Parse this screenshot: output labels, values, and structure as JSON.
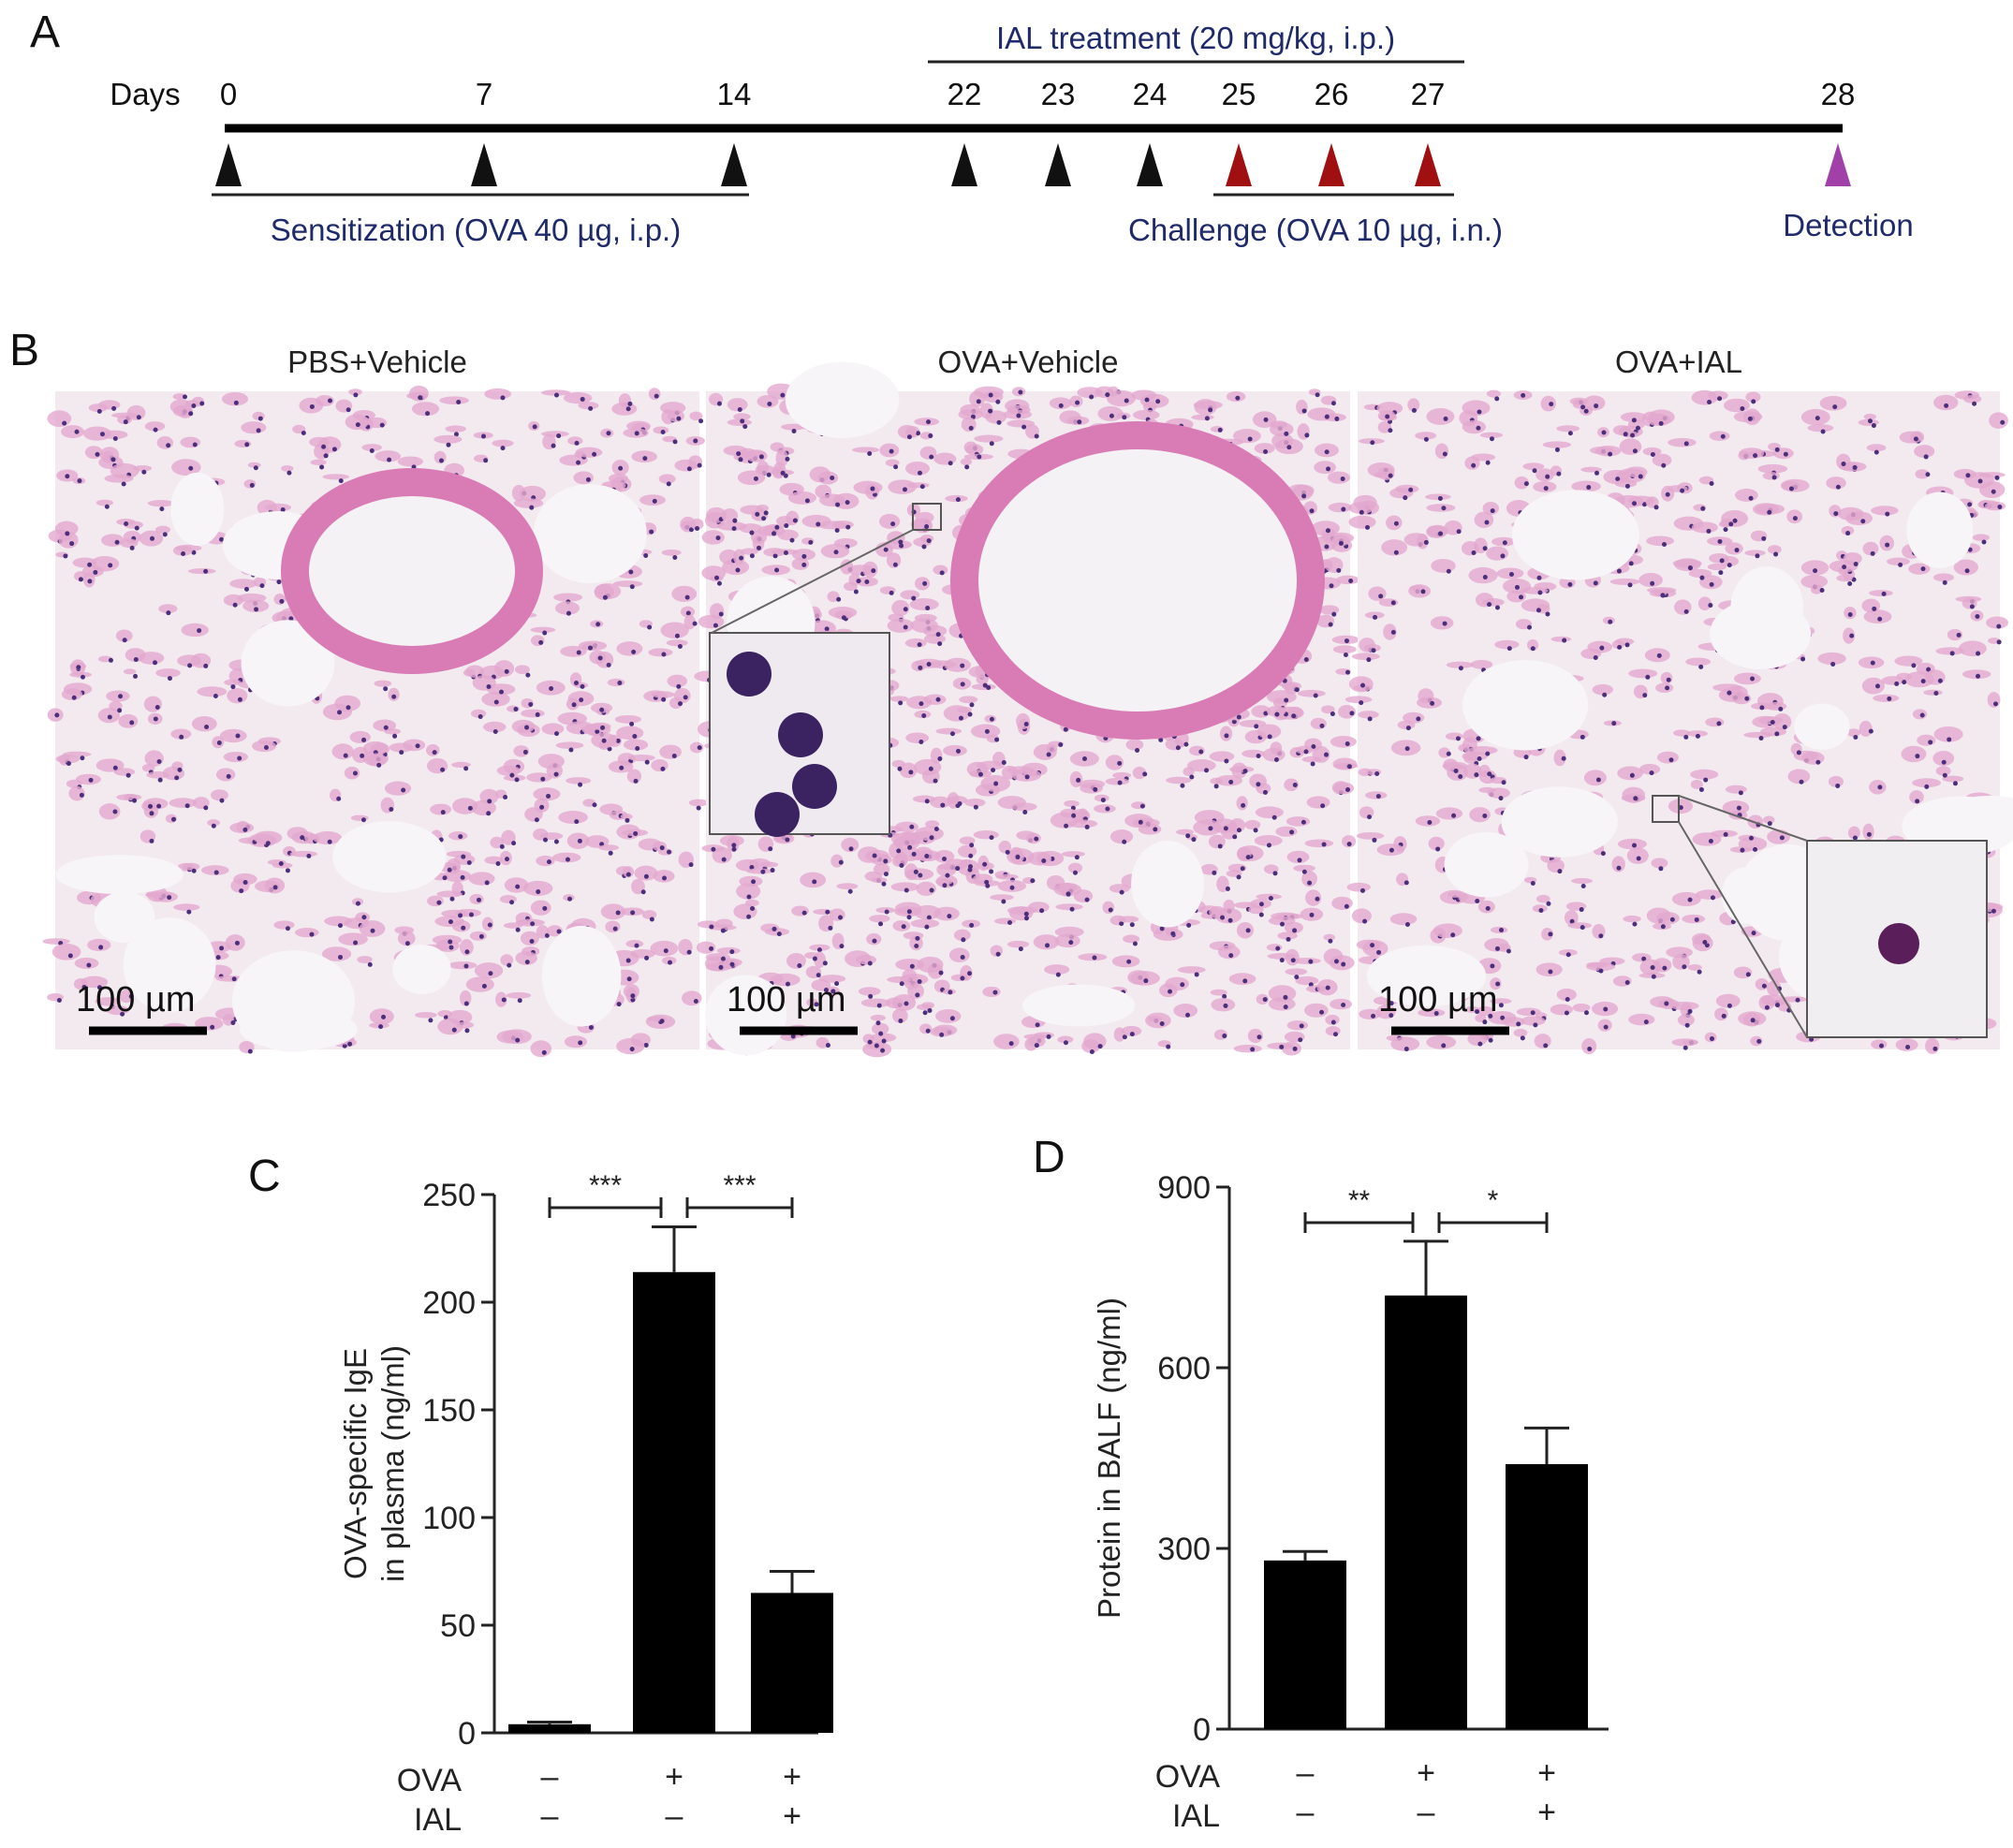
{
  "panel_labels": {
    "a": "A",
    "b": "B",
    "c": "C",
    "d": "D"
  },
  "timeline": {
    "days_label": "Days",
    "days": [
      0,
      7,
      14,
      22,
      23,
      24,
      25,
      26,
      27,
      28
    ],
    "day_labels": [
      "0",
      "7",
      "14",
      "22",
      "23",
      "24",
      "25",
      "26",
      "27",
      "28"
    ],
    "injection_days": [
      {
        "day": 0,
        "color": "#111111"
      },
      {
        "day": 7,
        "color": "#111111"
      },
      {
        "day": 14,
        "color": "#111111"
      },
      {
        "day": 22,
        "color": "#111111"
      },
      {
        "day": 23,
        "color": "#111111"
      },
      {
        "day": 24,
        "color": "#111111"
      },
      {
        "day": 25,
        "color": "#a01010"
      },
      {
        "day": 26,
        "color": "#a01010"
      },
      {
        "day": 27,
        "color": "#a01010"
      },
      {
        "day": 28,
        "color": "#a040a8"
      }
    ],
    "ial_treatment": "IAL treatment (20 mg/kg, i.p.)",
    "sensitization": "Sensitization (OVA 40 µg, i.p.)",
    "challenge": "Challenge (OVA 10 µg, i.n.)",
    "detection": "Detection",
    "text_color": "#1f2a6b"
  },
  "histology": {
    "panels": [
      {
        "title": "PBS+Vehicle",
        "scale_bar": "100 µm"
      },
      {
        "title": "OVA+Vehicle",
        "scale_bar": "100 µm"
      },
      {
        "title": "OVA+IAL",
        "scale_bar": "100 µm"
      }
    ]
  },
  "chart_data": [
    {
      "type": "bar",
      "panel": "C",
      "ylabel": [
        "OVA-specific IgE",
        "in plasma (ng/ml)"
      ],
      "ylim": [
        0,
        250
      ],
      "yticks": [
        0,
        50,
        100,
        150,
        200,
        250
      ],
      "groups": [
        {
          "OVA": "–",
          "IAL": "–"
        },
        {
          "OVA": "+",
          "IAL": "–"
        },
        {
          "OVA": "+",
          "IAL": "+"
        }
      ],
      "row_labels": [
        "OVA",
        "IAL"
      ],
      "values": [
        4,
        214,
        65
      ],
      "error_upper": [
        5,
        235,
        75
      ],
      "significance": [
        {
          "from": 0,
          "to": 1,
          "label": "***"
        },
        {
          "from": 1,
          "to": 2,
          "label": "***"
        }
      ],
      "bar_color": "#000000"
    },
    {
      "type": "bar",
      "panel": "D",
      "ylabel": [
        "Protein in BALF (ng/ml)"
      ],
      "ylim": [
        0,
        900
      ],
      "yticks": [
        0,
        300,
        600,
        900
      ],
      "groups": [
        {
          "OVA": "–",
          "IAL": "–"
        },
        {
          "OVA": "+",
          "IAL": "–"
        },
        {
          "OVA": "+",
          "IAL": "+"
        }
      ],
      "row_labels": [
        "OVA",
        "IAL"
      ],
      "values": [
        280,
        720,
        440
      ],
      "error_upper": [
        295,
        810,
        500
      ],
      "significance": [
        {
          "from": 0,
          "to": 1,
          "label": "**"
        },
        {
          "from": 1,
          "to": 2,
          "label": "*"
        }
      ],
      "bar_color": "#000000"
    }
  ]
}
